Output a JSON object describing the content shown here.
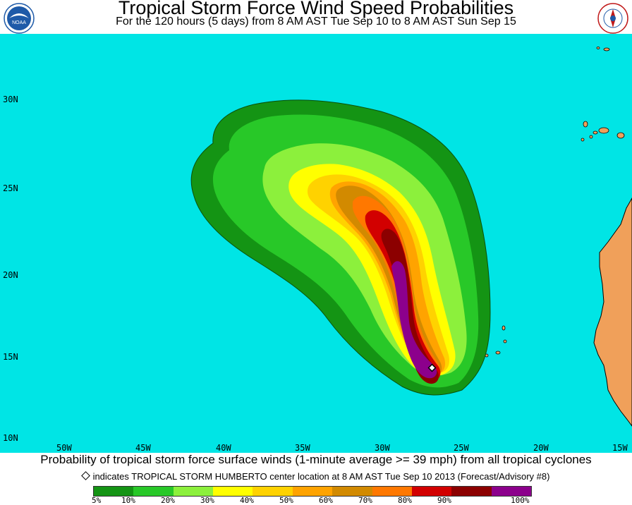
{
  "header": {
    "title": "Tropical Storm Force Wind Speed Probabilities",
    "subtitle": "For the 120 hours (5 days) from 8 AM AST Tue Sep 10 to 8 AM AST Sun Sep 15",
    "left_logo": {
      "text": "NOAA",
      "icon": "noaa-logo-icon"
    },
    "right_logo": {
      "text": "NATIONAL WEATHER SERVICE",
      "icon": "nws-logo-icon"
    }
  },
  "map": {
    "ocean_color": "#00e5e5",
    "land_color": "#f0a05a",
    "lat_labels": [
      "30N",
      "25N",
      "20N",
      "15N",
      "10N"
    ],
    "lon_labels": [
      "50W",
      "45W",
      "40W",
      "35W",
      "30W",
      "25W",
      "20W",
      "15W"
    ],
    "storm_marker_icon": "diamond-marker-icon"
  },
  "caption": "Probability of tropical storm force surface winds (1-minute average >= 39 mph) from all tropical cyclones",
  "indicator": "indicates TROPICAL STORM HUMBERTO center location at 8 AM AST Tue Sep 10 2013 (Forecast/Advisory #8)",
  "legend": {
    "labels": [
      "5%",
      "10%",
      "20%",
      "30%",
      "40%",
      "50%",
      "60%",
      "70%",
      "80%",
      "90%",
      "100%"
    ],
    "colors": [
      "#149414",
      "#28c828",
      "#8cf03c",
      "#ffff00",
      "#ffd200",
      "#ffa300",
      "#d28a00",
      "#ff7800",
      "#d20000",
      "#8c0000",
      "#8c008c"
    ]
  }
}
